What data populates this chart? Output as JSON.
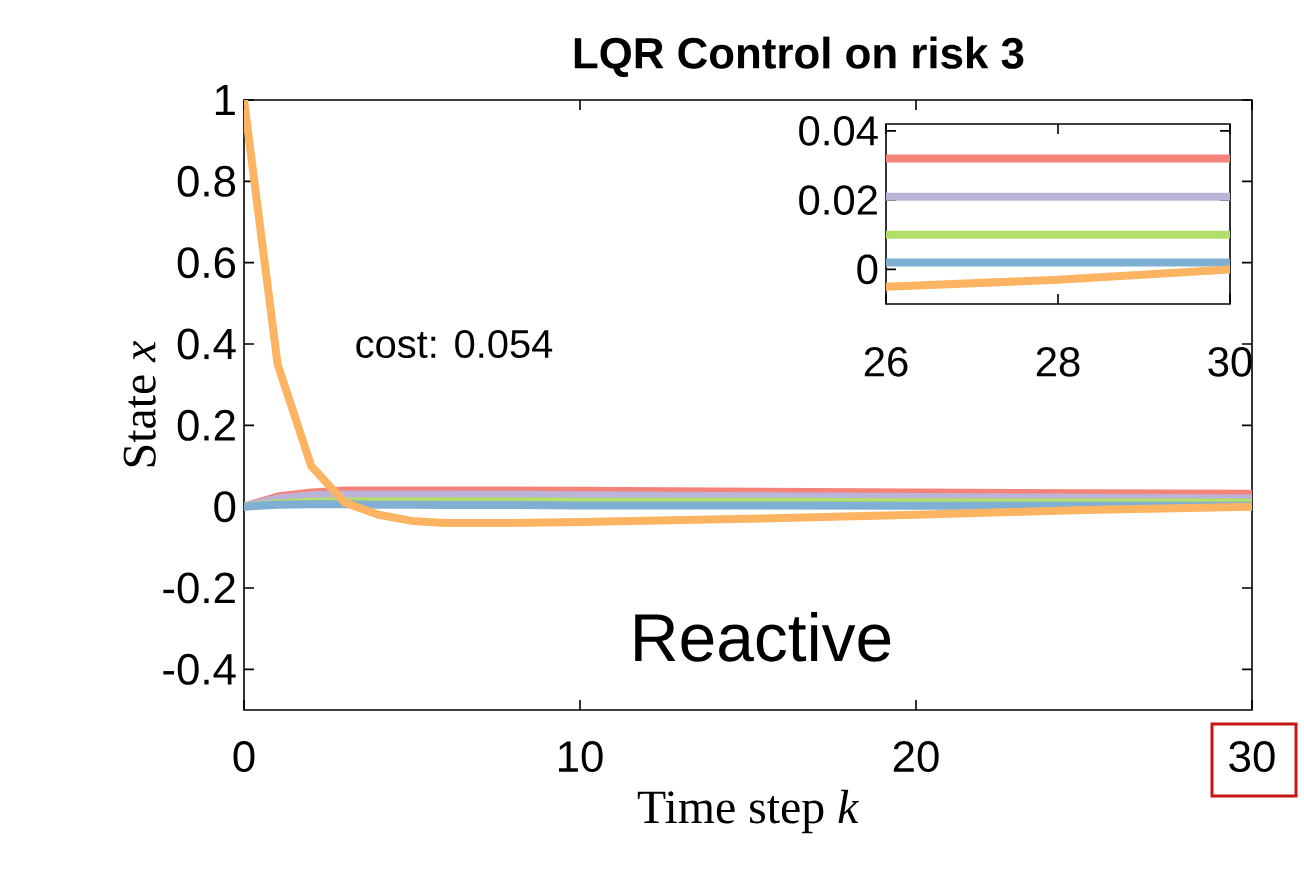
{
  "chart_data": [
    {
      "type": "line",
      "title": "LQR Control on risk 3",
      "xlabel": "Time step *k*",
      "ylabel": "State *x*",
      "annotations": [
        "cost: 0.054",
        "Reactive"
      ],
      "x": [
        0,
        1,
        2,
        3,
        4,
        5,
        6,
        8,
        10,
        15,
        20,
        25,
        30
      ],
      "xlim": [
        0,
        30
      ],
      "xticks": [
        0,
        10,
        20,
        30
      ],
      "ylim": [
        -0.5,
        1
      ],
      "yticks": [
        -0.4,
        -0.2,
        0,
        0.2,
        0.4,
        0.6,
        0.8,
        1
      ],
      "grid": false,
      "series": [
        {
          "color": "#f4847a",
          "values": [
            0,
            0.025,
            0.035,
            0.04,
            0.04,
            0.04,
            0.04,
            0.04,
            0.039,
            0.037,
            0.035,
            0.033,
            0.032
          ]
        },
        {
          "color": "#bcb4d8",
          "values": [
            0,
            0.02,
            0.028,
            0.03,
            0.03,
            0.03,
            0.03,
            0.029,
            0.028,
            0.026,
            0.024,
            0.022,
            0.02
          ]
        },
        {
          "color": "#b2de6a",
          "values": [
            0,
            0.008,
            0.012,
            0.013,
            0.013,
            0.013,
            0.013,
            0.013,
            0.012,
            0.012,
            0.011,
            0.01,
            0.01
          ]
        },
        {
          "color": "#7fafd3",
          "values": [
            0,
            0.005,
            0.006,
            0.006,
            0.005,
            0.005,
            0.004,
            0.004,
            0.003,
            0.003,
            0.002,
            0.002,
            0.002
          ]
        },
        {
          "color": "#fdb462",
          "values": [
            1,
            0.35,
            0.1,
            0.01,
            -0.02,
            -0.035,
            -0.04,
            -0.04,
            -0.038,
            -0.03,
            -0.02,
            -0.008,
            0
          ]
        }
      ]
    },
    {
      "type": "line",
      "x": [
        26,
        28,
        30
      ],
      "xlim": [
        26,
        30
      ],
      "xticks": [
        26,
        28,
        30
      ],
      "ylim": [
        -0.01,
        0.042
      ],
      "yticks": [
        0,
        0.02,
        0.04
      ],
      "grid": false,
      "series": [
        {
          "color": "#f4847a",
          "values": [
            0.032,
            0.032,
            0.032
          ]
        },
        {
          "color": "#bcb4d8",
          "values": [
            0.021,
            0.021,
            0.021
          ]
        },
        {
          "color": "#b2de6a",
          "values": [
            0.01,
            0.01,
            0.01
          ]
        },
        {
          "color": "#7fafd3",
          "values": [
            0.002,
            0.002,
            0.002
          ]
        },
        {
          "color": "#fdb462",
          "values": [
            -0.005,
            -0.003,
            0
          ]
        }
      ]
    }
  ]
}
